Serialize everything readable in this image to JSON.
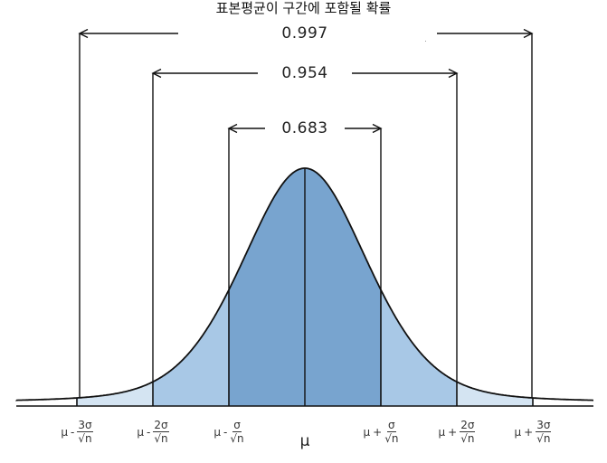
{
  "title": "표본평균이 구간에 포함될 확률",
  "intervals": [
    {
      "label": "0.997",
      "from": "-3",
      "to": "3"
    },
    {
      "label": "0.954",
      "from": "-2",
      "to": "2"
    },
    {
      "label": "0.683",
      "from": "-1",
      "to": "1"
    }
  ],
  "ticks": [
    {
      "mu": "μ",
      "sign": "-",
      "num": "3σ",
      "den": "√n"
    },
    {
      "mu": "μ",
      "sign": "-",
      "num": "2σ",
      "den": "√n"
    },
    {
      "mu": "μ",
      "sign": "-",
      "num": "σ",
      "den": "√n"
    },
    {
      "mu": "μ",
      "sign": "+",
      "num": "σ",
      "den": "√n"
    },
    {
      "mu": "μ",
      "sign": "+",
      "num": "2σ",
      "den": "√n"
    },
    {
      "mu": "μ",
      "sign": "+",
      "num": "3σ",
      "den": "√n"
    }
  ],
  "center_label": "μ",
  "colors": {
    "inner": "#78a4cf",
    "middle": "#a8c8e6",
    "outer": "#d4e4f2",
    "outline": "#111111"
  }
}
